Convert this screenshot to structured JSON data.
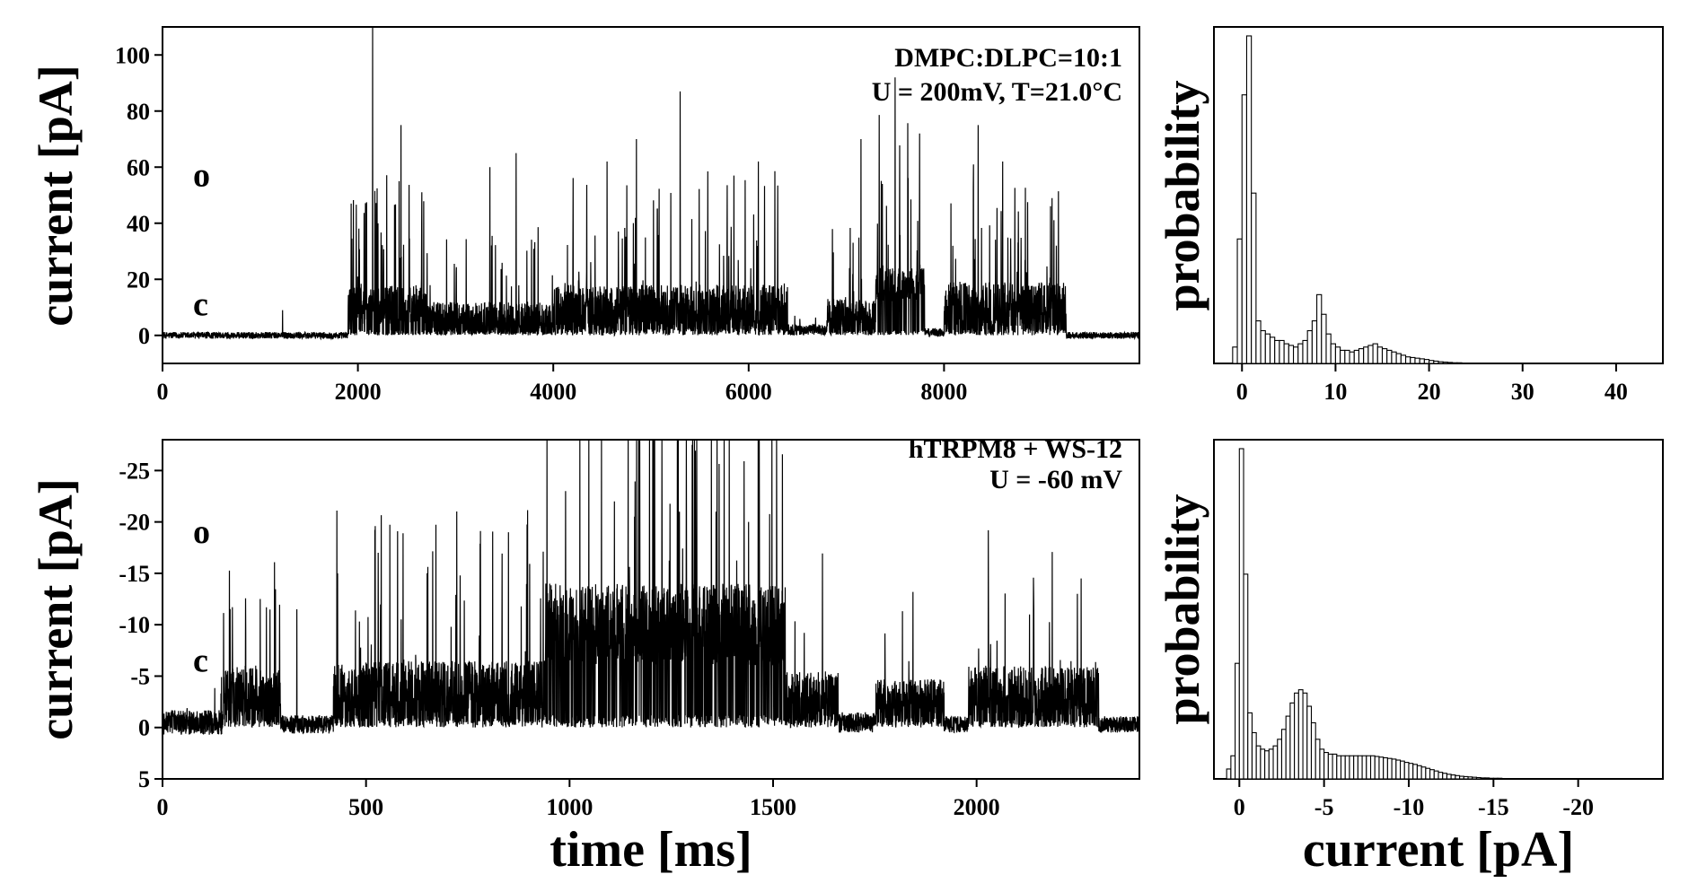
{
  "chart_data": [
    {
      "id": "trace_top",
      "type": "line",
      "xlabel": "",
      "ylabel": "current [pA]",
      "xlim": [
        0,
        10000
      ],
      "ylim": [
        -10,
        110
      ],
      "xticks": [
        "0",
        "2000",
        "4000",
        "6000",
        "8000"
      ],
      "xtick_values": [
        0,
        2000,
        4000,
        6000,
        8000
      ],
      "yticks": [
        "0",
        "20",
        "40",
        "60",
        "80",
        "100"
      ],
      "ytick_values": [
        0,
        20,
        40,
        60,
        80,
        100
      ],
      "annotations": [
        "DMPC:DLPC=10:1",
        "U = 200mV, T=21.0°C"
      ],
      "state_labels": [
        {
          "label": "o",
          "value": 57
        },
        {
          "label": "c",
          "value": 11
        }
      ],
      "series": [
        {
          "name": "current trace",
          "segments": [
            {
              "t0": 0,
              "t1": 1900,
              "base": 0,
              "noise": 1.2,
              "burst": 0
            },
            {
              "t0": 1900,
              "t1": 2700,
              "base": 11,
              "noise": 7,
              "burst": 0.1
            },
            {
              "t0": 2700,
              "t1": 4000,
              "base": 6,
              "noise": 6,
              "burst": 0.06
            },
            {
              "t0": 4000,
              "t1": 6400,
              "base": 10,
              "noise": 8,
              "burst": 0.07
            },
            {
              "t0": 6400,
              "t1": 6800,
              "base": 2,
              "noise": 2,
              "burst": 0.01
            },
            {
              "t0": 6800,
              "t1": 7300,
              "base": 7,
              "noise": 6,
              "burst": 0.05
            },
            {
              "t0": 7300,
              "t1": 7800,
              "base": 18,
              "noise": 6,
              "burst": 0.06
            },
            {
              "t0": 7800,
              "t1": 8000,
              "base": 1,
              "noise": 1.5,
              "burst": 0
            },
            {
              "t0": 8000,
              "t1": 9250,
              "base": 11,
              "noise": 8,
              "burst": 0.07
            },
            {
              "t0": 9250,
              "t1": 10000,
              "base": 0,
              "noise": 1.2,
              "burst": 0
            }
          ],
          "spikes": [
            {
              "t": 1230,
              "v": 9
            },
            {
              "t": 2150,
              "v": 110
            },
            {
              "t": 2440,
              "v": 75
            },
            {
              "t": 3350,
              "v": 60
            },
            {
              "t": 3620,
              "v": 65
            },
            {
              "t": 4550,
              "v": 62
            },
            {
              "t": 4850,
              "v": 70
            },
            {
              "t": 5300,
              "v": 87
            },
            {
              "t": 5850,
              "v": 57
            },
            {
              "t": 6100,
              "v": 62
            },
            {
              "t": 7150,
              "v": 70
            },
            {
              "t": 7500,
              "v": 92
            },
            {
              "t": 7750,
              "v": 72
            },
            {
              "t": 8350,
              "v": 75
            },
            {
              "t": 8600,
              "v": 62
            },
            {
              "t": 9150,
              "v": 32
            }
          ]
        }
      ]
    },
    {
      "id": "hist_top",
      "type": "bar",
      "xlabel": "",
      "ylabel": "probability",
      "xlim": [
        -3,
        45
      ],
      "xticks": [
        "0",
        "10",
        "20",
        "30",
        "40"
      ],
      "xtick_values": [
        0,
        10,
        20,
        30,
        40
      ],
      "bin_width": 0.5,
      "bin_start": -1,
      "values": [
        0.05,
        0.38,
        0.82,
        1.0,
        0.52,
        0.13,
        0.1,
        0.09,
        0.08,
        0.07,
        0.07,
        0.06,
        0.055,
        0.05,
        0.06,
        0.07,
        0.1,
        0.13,
        0.21,
        0.15,
        0.09,
        0.06,
        0.05,
        0.04,
        0.04,
        0.035,
        0.04,
        0.045,
        0.05,
        0.055,
        0.06,
        0.05,
        0.045,
        0.04,
        0.035,
        0.03,
        0.025,
        0.02,
        0.018,
        0.016,
        0.014,
        0.012,
        0.009,
        0.007,
        0.005,
        0.004,
        0.003,
        0.002,
        0.002,
        0.001
      ]
    },
    {
      "id": "trace_bottom",
      "type": "line",
      "xlabel": "time [ms]",
      "ylabel": "current [pA]",
      "xlim": [
        0,
        2400
      ],
      "ylim": [
        5,
        -28
      ],
      "xticks": [
        "0",
        "500",
        "1000",
        "1500",
        "2000"
      ],
      "xtick_values": [
        0,
        500,
        1000,
        1500,
        2000
      ],
      "yticks": [
        "-25",
        "-20",
        "-15",
        "-10",
        "-5",
        "0",
        "5"
      ],
      "ytick_values": [
        -25,
        -20,
        -15,
        -10,
        -5,
        0,
        5
      ],
      "annotations": [
        "hTRPM8 + WS-12",
        "U = -60 mV"
      ],
      "state_labels": [
        {
          "label": "o",
          "value": -19
        },
        {
          "label": "c",
          "value": -6.5
        }
      ],
      "series": [
        {
          "name": "current trace",
          "segments": [
            {
              "t0": 0,
              "t1": 150,
              "base": -0.5,
              "noise": 1.2,
              "burst": 0.04
            },
            {
              "t0": 150,
              "t1": 290,
              "base": -3.5,
              "noise": 2.5,
              "burst": 0.05
            },
            {
              "t0": 290,
              "t1": 420,
              "base": -0.3,
              "noise": 0.9,
              "burst": 0
            },
            {
              "t0": 420,
              "t1": 940,
              "base": -3.5,
              "noise": 3,
              "burst": 0.05
            },
            {
              "t0": 940,
              "t1": 1530,
              "base": -10,
              "noise": 4,
              "burst": 0.05
            },
            {
              "t0": 1530,
              "t1": 1660,
              "base": -3,
              "noise": 2.5,
              "burst": 0.03
            },
            {
              "t0": 1660,
              "t1": 1750,
              "base": -0.5,
              "noise": 1,
              "burst": 0
            },
            {
              "t0": 1750,
              "t1": 1920,
              "base": -2.5,
              "noise": 2.2,
              "burst": 0.03
            },
            {
              "t0": 1920,
              "t1": 1980,
              "base": -0.3,
              "noise": 0.8,
              "burst": 0
            },
            {
              "t0": 1980,
              "t1": 2300,
              "base": -3.5,
              "noise": 2.5,
              "burst": 0.04
            },
            {
              "t0": 2300,
              "t1": 2400,
              "base": -0.3,
              "noise": 0.8,
              "burst": 0
            }
          ],
          "spikes": [
            {
              "t": 240,
              "v": -12.5
            },
            {
              "t": 330,
              "v": -11.5
            },
            {
              "t": 530,
              "v": -17
            },
            {
              "t": 650,
              "v": -15
            },
            {
              "t": 850,
              "v": -19
            },
            {
              "t": 990,
              "v": -23
            },
            {
              "t": 1110,
              "v": -22
            },
            {
              "t": 1270,
              "v": -21
            },
            {
              "t": 1360,
              "v": -21
            },
            {
              "t": 1440,
              "v": -20
            },
            {
              "t": 2130,
              "v": -11
            }
          ]
        }
      ]
    },
    {
      "id": "hist_bottom",
      "type": "bar",
      "xlabel": "current [pA]",
      "ylabel": "probability",
      "xlim": [
        1.5,
        -25
      ],
      "xticks": [
        "0",
        "-5",
        "-10",
        "-15",
        "-20"
      ],
      "xtick_values": [
        0,
        -5,
        -10,
        -15,
        -20
      ],
      "bin_width": 0.25,
      "bin_start": 0.75,
      "values": [
        0.03,
        0.07,
        0.35,
        1.0,
        0.62,
        0.2,
        0.14,
        0.1,
        0.09,
        0.085,
        0.09,
        0.1,
        0.12,
        0.15,
        0.19,
        0.23,
        0.26,
        0.27,
        0.26,
        0.22,
        0.17,
        0.12,
        0.09,
        0.08,
        0.075,
        0.075,
        0.07,
        0.07,
        0.07,
        0.07,
        0.07,
        0.07,
        0.07,
        0.07,
        0.07,
        0.068,
        0.066,
        0.064,
        0.062,
        0.06,
        0.057,
        0.054,
        0.05,
        0.047,
        0.044,
        0.04,
        0.036,
        0.032,
        0.028,
        0.024,
        0.02,
        0.017,
        0.014,
        0.012,
        0.01,
        0.008,
        0.007,
        0.006,
        0.005,
        0.004,
        0.003,
        0.003,
        0.002,
        0.002,
        0.002,
        0.001,
        0.001,
        0.001,
        0.001,
        0.001,
        0.001,
        0.001,
        0.001,
        0.001,
        0.001,
        0.001,
        0.001,
        0.001,
        0.001,
        0.001,
        0.001,
        0.001,
        0.001,
        0.001,
        0.001,
        0.001,
        0.001,
        0.001,
        0.001,
        0.001,
        0.001,
        0.001,
        0.001
      ]
    }
  ]
}
